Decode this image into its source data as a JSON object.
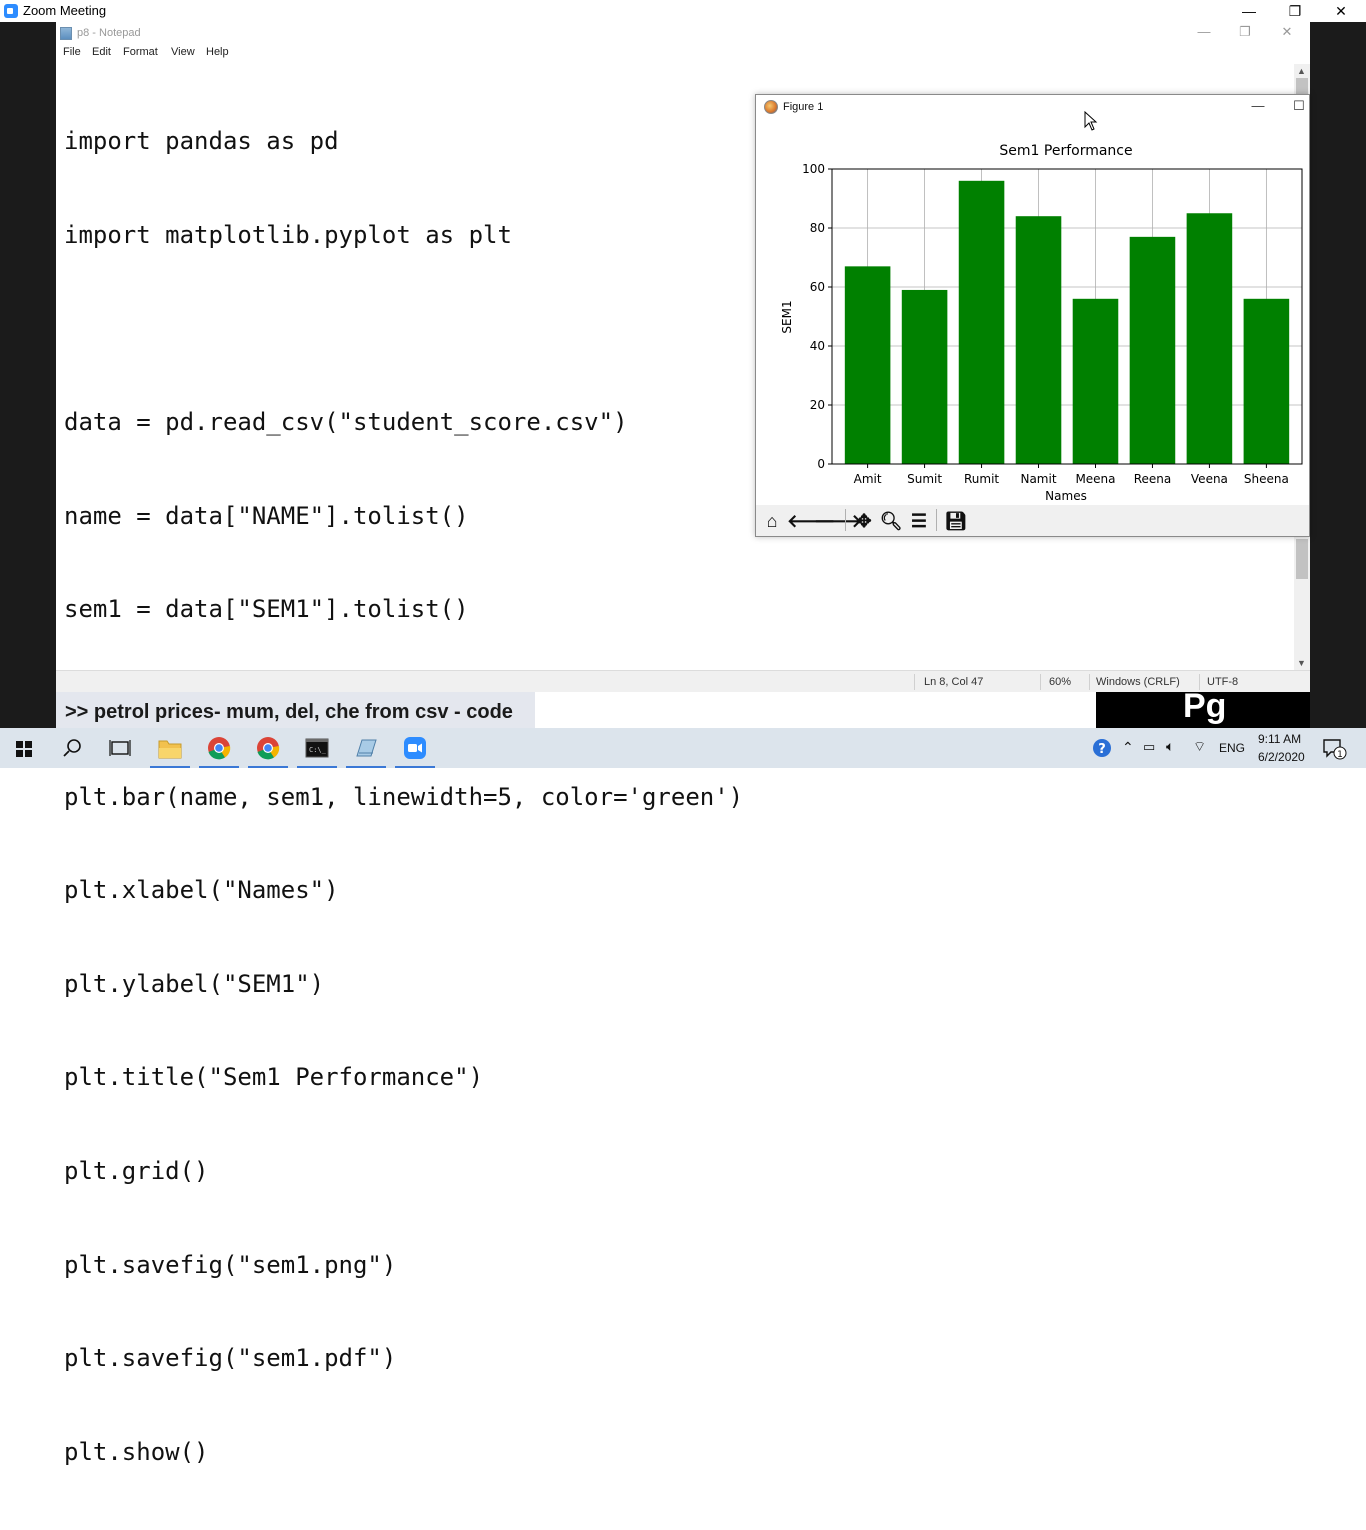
{
  "zoom": {
    "title": "Zoom Meeting",
    "controls": {
      "minimize": "—",
      "restore": "❐",
      "close": "✕"
    }
  },
  "notepad": {
    "title": "p8 - Notepad",
    "menu": [
      "File",
      "Edit",
      "Format",
      "View",
      "Help"
    ],
    "lines": [
      "import pandas as pd",
      "import matplotlib.pyplot as plt",
      "",
      "data = pd.read_csv(\"student_score.csv\")",
      "name = data[\"NAME\"].tolist()",
      "sem1 = data[\"SEM1\"].tolist()",
      "",
      "plt.bar(name, sem1, linewidth=5, color='green')",
      "plt.xlabel(\"Names\")",
      "plt.ylabel(\"SEM1\")",
      "plt.title(\"Sem1 Performance\")",
      "plt.grid()",
      "plt.savefig(\"sem1.png\")",
      "plt.savefig(\"sem1.pdf\")",
      "plt.show()"
    ],
    "status": {
      "position": "Ln 8, Col 47",
      "zoom": "60%",
      "line_ending": "Windows (CRLF)",
      "encoding": "UTF-8"
    }
  },
  "figure": {
    "title": "Figure 1"
  },
  "chart_data": {
    "type": "bar",
    "title": "Sem1 Performance",
    "xlabel": "Names",
    "ylabel": "SEM1",
    "categories": [
      "Amit",
      "Sumit",
      "Rumit",
      "Namit",
      "Meena",
      "Reena",
      "Veena",
      "Sheena"
    ],
    "values": [
      67,
      59,
      96,
      84,
      56,
      77,
      85,
      56
    ],
    "ylim": [
      0,
      100
    ],
    "yticks": [
      0,
      20,
      40,
      60,
      80,
      100
    ],
    "grid": true,
    "color": "#008000"
  },
  "caption": {
    "left": ">> petrol prices- mum, del, che from csv - code",
    "right": "Pg"
  },
  "taskbar": {
    "time": "9:11 AM",
    "date": "6/2/2020",
    "language": "ENG",
    "notifications": "1"
  }
}
